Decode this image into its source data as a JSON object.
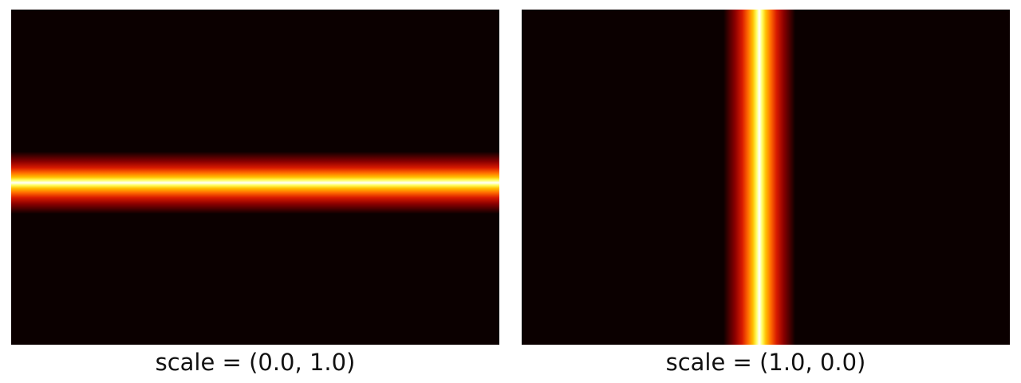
{
  "panels": [
    {
      "caption": "scale = (0.0, 1.0)",
      "band_orientation": "horizontal",
      "colormap": "hot"
    },
    {
      "caption": "scale = (1.0, 0.0)",
      "band_orientation": "vertical",
      "colormap": "hot"
    }
  ],
  "colors": {
    "background": "#0b0000",
    "peak": "#ffffff"
  }
}
